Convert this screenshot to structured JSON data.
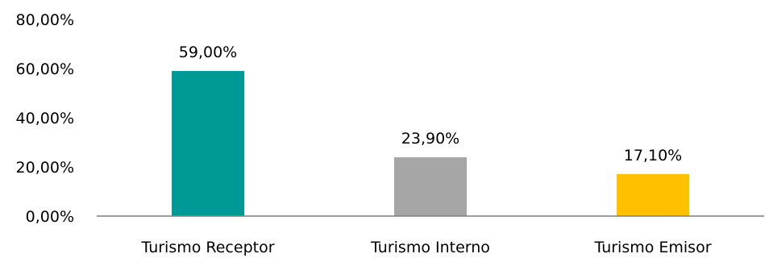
{
  "chart_data": {
    "type": "bar",
    "categories": [
      "Turismo Receptor",
      "Turismo Interno",
      "Turismo Emisor"
    ],
    "values": [
      59.0,
      23.9,
      17.1
    ],
    "value_labels": [
      "59,00%",
      "23,90%",
      "17,10%"
    ],
    "colors": [
      "#009a96",
      "#a6a6a6",
      "#ffc000"
    ],
    "yticks": [
      0,
      20,
      40,
      60,
      80
    ],
    "ytick_labels": [
      "0,00%",
      "20,00%",
      "40,00%",
      "60,00%",
      "80,00%"
    ],
    "ylim": [
      0,
      80
    ],
    "grid": false,
    "legend": false,
    "title": "",
    "xlabel": "",
    "ylabel": ""
  }
}
